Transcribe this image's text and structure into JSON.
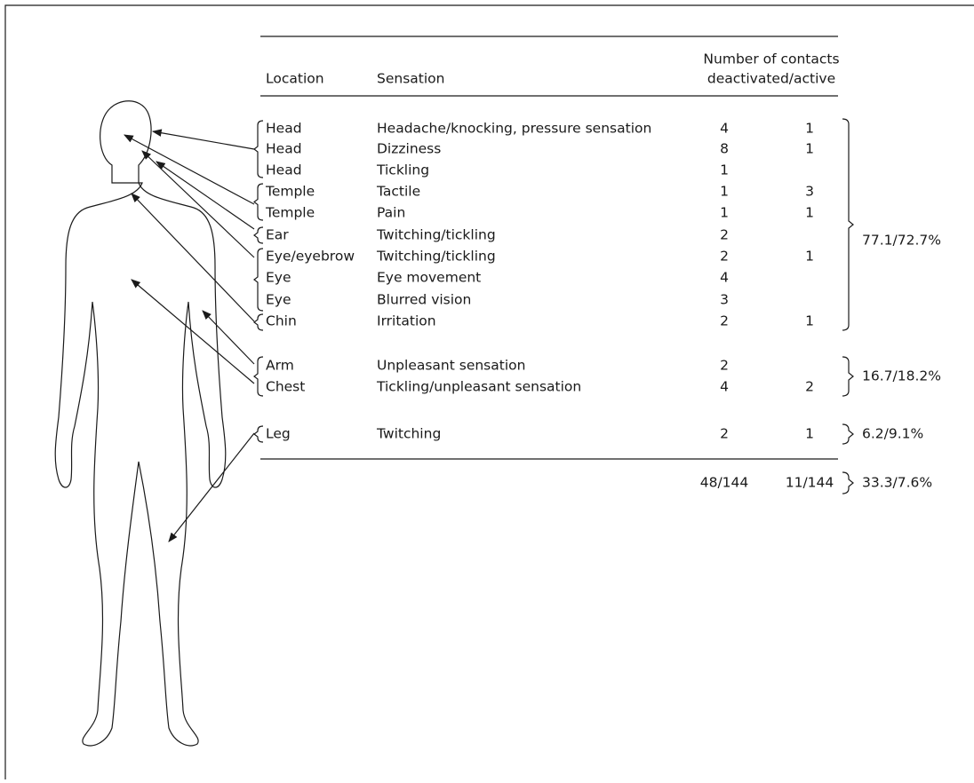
{
  "table": {
    "headers": [
      "Location",
      "Sensation",
      "Number of contacts",
      "deactivated/active"
    ],
    "rows": [
      [
        "Head",
        "Headache/knocking, pressure sensation",
        "4",
        "1"
      ],
      [
        "Head",
        "Dizziness",
        "8",
        "1"
      ],
      [
        "Head",
        "Tickling",
        "1",
        null
      ],
      [
        "Temple",
        "Tactile",
        "1",
        "3"
      ],
      [
        "Temple",
        "Pain",
        "1",
        "1"
      ],
      [
        "Ear",
        "Twitching/tickling",
        "2",
        null
      ],
      [
        "Eye/eyebrow",
        "Twitching/tickling",
        "2",
        "1"
      ],
      [
        "Eye",
        "Eye movement",
        "4",
        null
      ],
      [
        "Eye",
        "Blurred vision",
        "3",
        null
      ],
      [
        "Chin",
        "Irritation",
        "2",
        "1"
      ],
      [
        "Arm",
        "Unpleasant sensation",
        "2",
        null
      ],
      [
        "Chest",
        "Tickling/unpleasant sensation",
        "4",
        "2"
      ],
      [
        "Leg",
        "Twitching",
        "2",
        "1"
      ]
    ],
    "groups": [
      "77.1/72.7%",
      "16.7/18.2%",
      "6.2/9.1%"
    ],
    "totals": [
      "48/144",
      "11/144",
      "33.3/7.6%"
    ]
  }
}
